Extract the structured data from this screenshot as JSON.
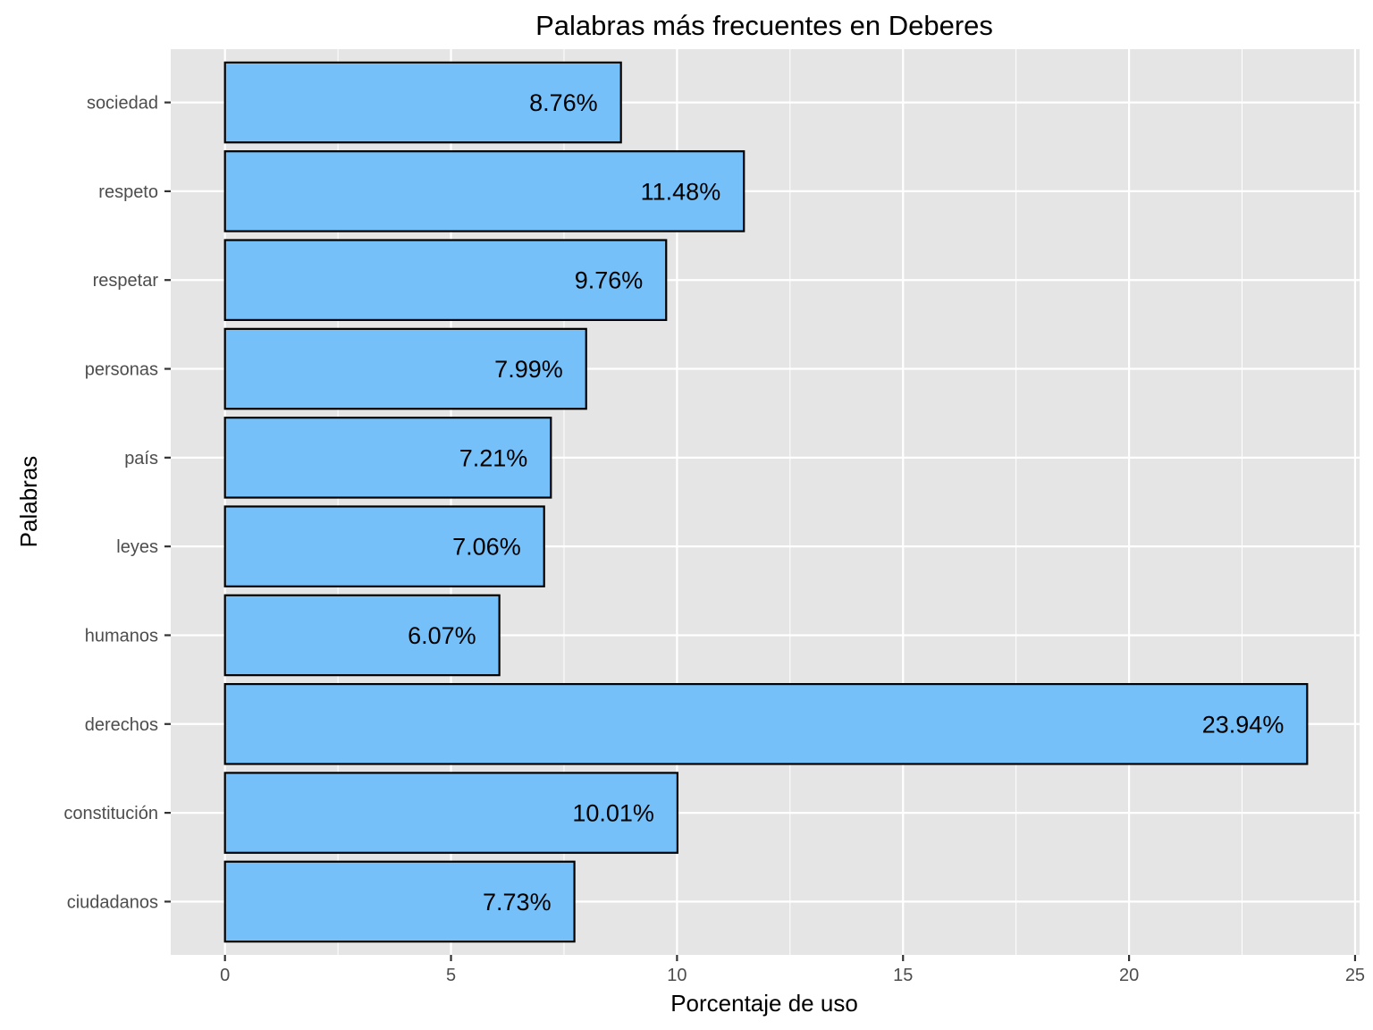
{
  "chart_data": {
    "type": "bar",
    "orientation": "horizontal",
    "title": "Palabras más frecuentes en Deberes",
    "xlabel": "Porcentaje de uso",
    "ylabel": "Palabras",
    "categories": [
      "ciudadanos",
      "constitución",
      "derechos",
      "humanos",
      "leyes",
      "país",
      "personas",
      "respetar",
      "respeto",
      "sociedad"
    ],
    "values": [
      7.73,
      10.01,
      23.94,
      6.07,
      7.06,
      7.21,
      7.99,
      9.76,
      11.48,
      8.76
    ],
    "data_labels": [
      "7.73%",
      "10.01%",
      "23.94%",
      "6.07%",
      "7.06%",
      "7.21%",
      "7.99%",
      "9.76%",
      "11.48%",
      "8.76%"
    ],
    "xlim": [
      -1.2,
      25.1
    ],
    "x_ticks": [
      0,
      5,
      10,
      15,
      20,
      25
    ],
    "x_tick_labels": [
      "0",
      "5",
      "10",
      "15",
      "20",
      "25"
    ],
    "grid": true,
    "legend": "none",
    "colors": {
      "bar_fill": "#75C0F8",
      "bar_stroke": "#000000",
      "panel_background": "#E5E5E5",
      "grid": "#FFFFFF"
    }
  }
}
